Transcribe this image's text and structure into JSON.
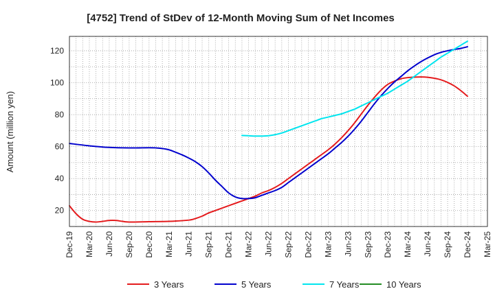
{
  "chart_data": {
    "type": "line",
    "title": "[4752]  Trend of StDev of 12-Month Moving Sum of Net Incomes",
    "xlabel": "",
    "ylabel": "Amount (million yen)",
    "ylim": [
      10,
      129
    ],
    "yticks": [
      20,
      40,
      60,
      80,
      100,
      120
    ],
    "x_tick_labels": [
      "Dec-19",
      "Mar-20",
      "Jun-20",
      "Sep-20",
      "Dec-20",
      "Mar-21",
      "Jun-21",
      "Sep-21",
      "Dec-21",
      "Mar-22",
      "Jun-22",
      "Sep-22",
      "Dec-22",
      "Mar-23",
      "Jun-23",
      "Sep-23",
      "Dec-23",
      "Mar-24",
      "Jun-24",
      "Sep-24",
      "Dec-24",
      "Mar-25"
    ],
    "grid": true,
    "legend_position": "bottom",
    "series": [
      {
        "name": "3 Years",
        "color": "#e41a1c",
        "x": [
          "Dec-19",
          "Jan-20",
          "Feb-20",
          "Mar-20",
          "Apr-20",
          "May-20",
          "Jun-20",
          "Jul-20",
          "Aug-20",
          "Sep-20",
          "Dec-20",
          "Mar-21",
          "Jun-21",
          "Jul-21",
          "Aug-21",
          "Sep-21",
          "Oct-21",
          "Nov-21",
          "Dec-21",
          "Jan-22",
          "Feb-22",
          "Mar-22",
          "Apr-22",
          "May-22",
          "Jun-22",
          "Jul-22",
          "Aug-22",
          "Sep-22",
          "Oct-22",
          "Nov-22",
          "Dec-22",
          "Jan-23",
          "Feb-23",
          "Mar-23",
          "Apr-23",
          "May-23",
          "Jun-23",
          "Jul-23",
          "Aug-23",
          "Sep-23",
          "Oct-23",
          "Nov-23",
          "Dec-23",
          "Jan-24",
          "Feb-24",
          "Mar-24",
          "Apr-24",
          "May-24",
          "Jun-24",
          "Jul-24",
          "Aug-24",
          "Sep-24",
          "Oct-24",
          "Nov-24",
          "Dec-24"
        ],
        "values": [
          23,
          18,
          14.5,
          13.2,
          12.8,
          13.2,
          13.8,
          13.8,
          13.2,
          12.8,
          13.0,
          13.2,
          14.0,
          15.0,
          16.5,
          18.5,
          20.0,
          21.5,
          23.0,
          24.5,
          26.0,
          27.5,
          29.0,
          31.0,
          32.5,
          34.5,
          37.0,
          40.0,
          43.0,
          46.0,
          49.0,
          52.0,
          55.0,
          58.0,
          61.5,
          65.5,
          70.0,
          75.0,
          80.5,
          86.0,
          91.0,
          95.5,
          99.0,
          101.0,
          102.5,
          103.2,
          103.5,
          103.6,
          103.4,
          102.8,
          101.8,
          100.2,
          98.0,
          95.0,
          91.5
        ]
      },
      {
        "name": "5 Years",
        "color": "#0000cd",
        "x": [
          "Dec-19",
          "Mar-20",
          "Jun-20",
          "Sep-20",
          "Dec-20",
          "Jan-21",
          "Feb-21",
          "Mar-21",
          "Apr-21",
          "May-21",
          "Jun-21",
          "Jul-21",
          "Aug-21",
          "Sep-21",
          "Oct-21",
          "Nov-21",
          "Dec-21",
          "Jan-22",
          "Feb-22",
          "Mar-22",
          "Apr-22",
          "May-22",
          "Jun-22",
          "Jul-22",
          "Aug-22",
          "Sep-22",
          "Oct-22",
          "Nov-22",
          "Dec-22",
          "Jan-23",
          "Feb-23",
          "Mar-23",
          "Apr-23",
          "May-23",
          "Jun-23",
          "Jul-23",
          "Aug-23",
          "Sep-23",
          "Oct-23",
          "Nov-23",
          "Dec-23",
          "Jan-24",
          "Feb-24",
          "Mar-24",
          "Apr-24",
          "May-24",
          "Jun-24",
          "Jul-24",
          "Aug-24",
          "Sep-24",
          "Oct-24",
          "Nov-24",
          "Dec-24"
        ],
        "values": [
          62,
          60.5,
          59.5,
          59.2,
          59.3,
          59.2,
          58.8,
          58.0,
          56.5,
          54.8,
          52.8,
          50.5,
          47.5,
          43.5,
          39.0,
          35.0,
          31.0,
          28.5,
          27.5,
          27.5,
          28.0,
          29.5,
          31.0,
          32.5,
          34.5,
          37.5,
          40.5,
          43.5,
          46.5,
          49.5,
          52.5,
          55.5,
          59.0,
          62.5,
          66.5,
          71.0,
          76.0,
          81.5,
          87.0,
          92.0,
          96.5,
          100.5,
          104.0,
          107.5,
          110.5,
          113.2,
          115.5,
          117.5,
          119.0,
          120.0,
          120.8,
          121.5,
          122.5
        ]
      },
      {
        "name": "7 Years",
        "color": "#00e5ee",
        "x": [
          "Feb-22",
          "Mar-22",
          "Apr-22",
          "May-22",
          "Jun-22",
          "Jul-22",
          "Aug-22",
          "Sep-22",
          "Oct-22",
          "Nov-22",
          "Dec-22",
          "Jan-23",
          "Feb-23",
          "Mar-23",
          "Apr-23",
          "May-23",
          "Jun-23",
          "Jul-23",
          "Aug-23",
          "Sep-23",
          "Oct-23",
          "Nov-23",
          "Dec-23",
          "Jan-24",
          "Feb-24",
          "Mar-24",
          "Apr-24",
          "May-24",
          "Jun-24",
          "Jul-24",
          "Aug-24",
          "Sep-24",
          "Oct-24",
          "Nov-24",
          "Dec-24"
        ],
        "values": [
          67,
          66.8,
          66.6,
          66.6,
          66.8,
          67.5,
          68.5,
          70.0,
          71.5,
          73.0,
          74.5,
          76.0,
          77.5,
          78.5,
          79.5,
          80.5,
          82.0,
          83.5,
          85.5,
          87.5,
          89.5,
          91.5,
          93.5,
          96.0,
          98.5,
          101.0,
          104.0,
          107.0,
          110.0,
          113.0,
          116.0,
          118.5,
          121.0,
          123.5,
          126.0
        ]
      },
      {
        "name": "10 Years",
        "color": "#228b22",
        "x": [],
        "values": []
      }
    ]
  }
}
